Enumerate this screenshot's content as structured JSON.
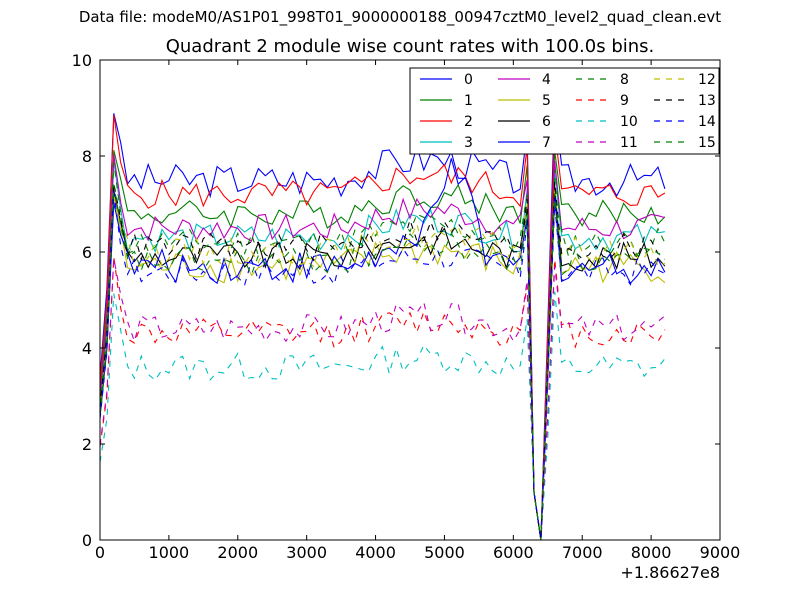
{
  "chart_data": {
    "type": "line",
    "suptitle": "Data file: modeM0/AS1P01_998T01_9000000188_00947cztM0_level2_quad_clean.evt",
    "title": "Quadrant 2 module wise count rates with 100.0s bins.",
    "xlabel": "",
    "ylabel": "",
    "xlim": [
      0,
      9000
    ],
    "ylim": [
      0,
      10
    ],
    "x_offset_label": "+1.86627e8",
    "xticks": [
      0,
      1000,
      2000,
      3000,
      4000,
      5000,
      6000,
      7000,
      8000,
      9000
    ],
    "yticks": [
      0,
      2,
      4,
      6,
      8,
      10
    ],
    "x": {
      "start": 0,
      "step": 100,
      "count": 83
    },
    "grid": false,
    "legend_position": "top-right",
    "legend_columns": 4,
    "series": [
      {
        "name": "0",
        "color": "#0000ff",
        "dash": "solid",
        "base": 7.5,
        "amp": 0.35
      },
      {
        "name": "1",
        "color": "#008000",
        "dash": "solid",
        "base": 6.8,
        "amp": 0.3
      },
      {
        "name": "2",
        "color": "#ff0000",
        "dash": "solid",
        "base": 7.2,
        "amp": 0.3
      },
      {
        "name": "3",
        "color": "#00bfbf",
        "dash": "solid",
        "base": 6.3,
        "amp": 0.3
      },
      {
        "name": "4",
        "color": "#bf00bf",
        "dash": "solid",
        "base": 6.5,
        "amp": 0.3
      },
      {
        "name": "5",
        "color": "#bfbf00",
        "dash": "solid",
        "base": 5.7,
        "amp": 0.35
      },
      {
        "name": "6",
        "color": "#000000",
        "dash": "solid",
        "base": 5.9,
        "amp": 0.3
      },
      {
        "name": "7",
        "color": "#0000ff",
        "dash": "solid",
        "base": 5.7,
        "amp": 0.35
      },
      {
        "name": "8",
        "color": "#008000",
        "dash": "dashed",
        "base": 6.2,
        "amp": 0.3
      },
      {
        "name": "9",
        "color": "#ff0000",
        "dash": "dashed",
        "base": 4.3,
        "amp": 0.3
      },
      {
        "name": "10",
        "color": "#00bfbf",
        "dash": "dashed",
        "base": 3.6,
        "amp": 0.3
      },
      {
        "name": "11",
        "color": "#bf00bf",
        "dash": "dashed",
        "base": 4.4,
        "amp": 0.3
      },
      {
        "name": "12",
        "color": "#bfbf00",
        "dash": "dashed",
        "base": 6.0,
        "amp": 0.3
      },
      {
        "name": "13",
        "color": "#000000",
        "dash": "dashed",
        "base": 6.1,
        "amp": 0.3
      },
      {
        "name": "14",
        "color": "#0000ff",
        "dash": "dashed",
        "base": 5.6,
        "amp": 0.3
      },
      {
        "name": "15",
        "color": "#008000",
        "dash": "dashed",
        "base": 5.8,
        "amp": 0.3
      }
    ]
  }
}
